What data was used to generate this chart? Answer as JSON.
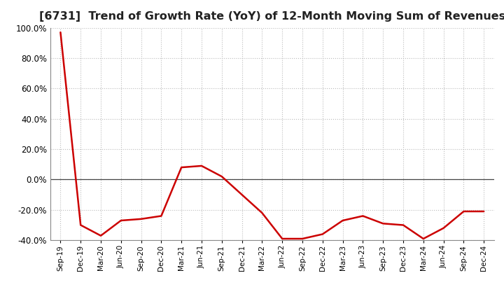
{
  "title": "[6731]  Trend of Growth Rate (YoY) of 12-Month Moving Sum of Revenues",
  "title_fontsize": 11.5,
  "line_color": "#cc0000",
  "line_width": 1.8,
  "background_color": "#ffffff",
  "grid_color": "#bbbbbb",
  "ylim": [
    -0.4,
    1.0
  ],
  "yticks": [
    -0.4,
    -0.2,
    0.0,
    0.2,
    0.4,
    0.6,
    0.8,
    1.0
  ],
  "x_labels": [
    "Sep-19",
    "Dec-19",
    "Mar-20",
    "Jun-20",
    "Sep-20",
    "Dec-20",
    "Mar-21",
    "Jun-21",
    "Sep-21",
    "Dec-21",
    "Mar-22",
    "Jun-22",
    "Sep-22",
    "Dec-22",
    "Mar-23",
    "Jun-23",
    "Sep-23",
    "Dec-23",
    "Mar-24",
    "Jun-24",
    "Sep-24",
    "Dec-24"
  ],
  "values": [
    0.97,
    -0.3,
    -0.37,
    -0.27,
    -0.26,
    -0.24,
    0.08,
    0.09,
    0.02,
    -0.1,
    -0.22,
    -0.39,
    -0.39,
    -0.36,
    -0.27,
    -0.24,
    -0.29,
    -0.3,
    -0.39,
    -0.32,
    -0.21,
    -0.21
  ]
}
